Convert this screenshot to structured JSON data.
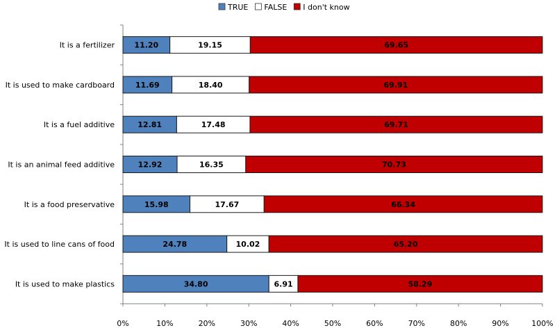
{
  "chart_data": {
    "type": "bar",
    "orientation": "horizontal",
    "stacked": true,
    "categories": [
      "It is a fertilizer",
      "It is used to make cardboard",
      "It is a fuel additive",
      "It is an animal feed additive",
      "It is a food preservative",
      "It is used to line cans of food",
      "It is used to make plastics"
    ],
    "series": [
      {
        "name": "TRUE",
        "color": "#4F81BD",
        "values": [
          11.2,
          11.69,
          12.81,
          12.92,
          15.98,
          24.78,
          34.8
        ]
      },
      {
        "name": "FALSE",
        "color": "#FFFFFF",
        "values": [
          19.15,
          18.4,
          17.48,
          16.35,
          17.67,
          10.02,
          6.91
        ]
      },
      {
        "name": "I don't know",
        "color": "#C00000",
        "values": [
          69.65,
          69.91,
          69.71,
          70.73,
          66.34,
          65.2,
          58.29
        ]
      }
    ],
    "xlim": [
      0,
      100
    ],
    "xticks": [
      "0%",
      "10%",
      "20%",
      "30%",
      "40%",
      "50%",
      "60%",
      "70%",
      "80%",
      "90%",
      "100%"
    ],
    "legend": "top-center",
    "grid": false,
    "title": "",
    "xlabel": "",
    "ylabel": ""
  }
}
